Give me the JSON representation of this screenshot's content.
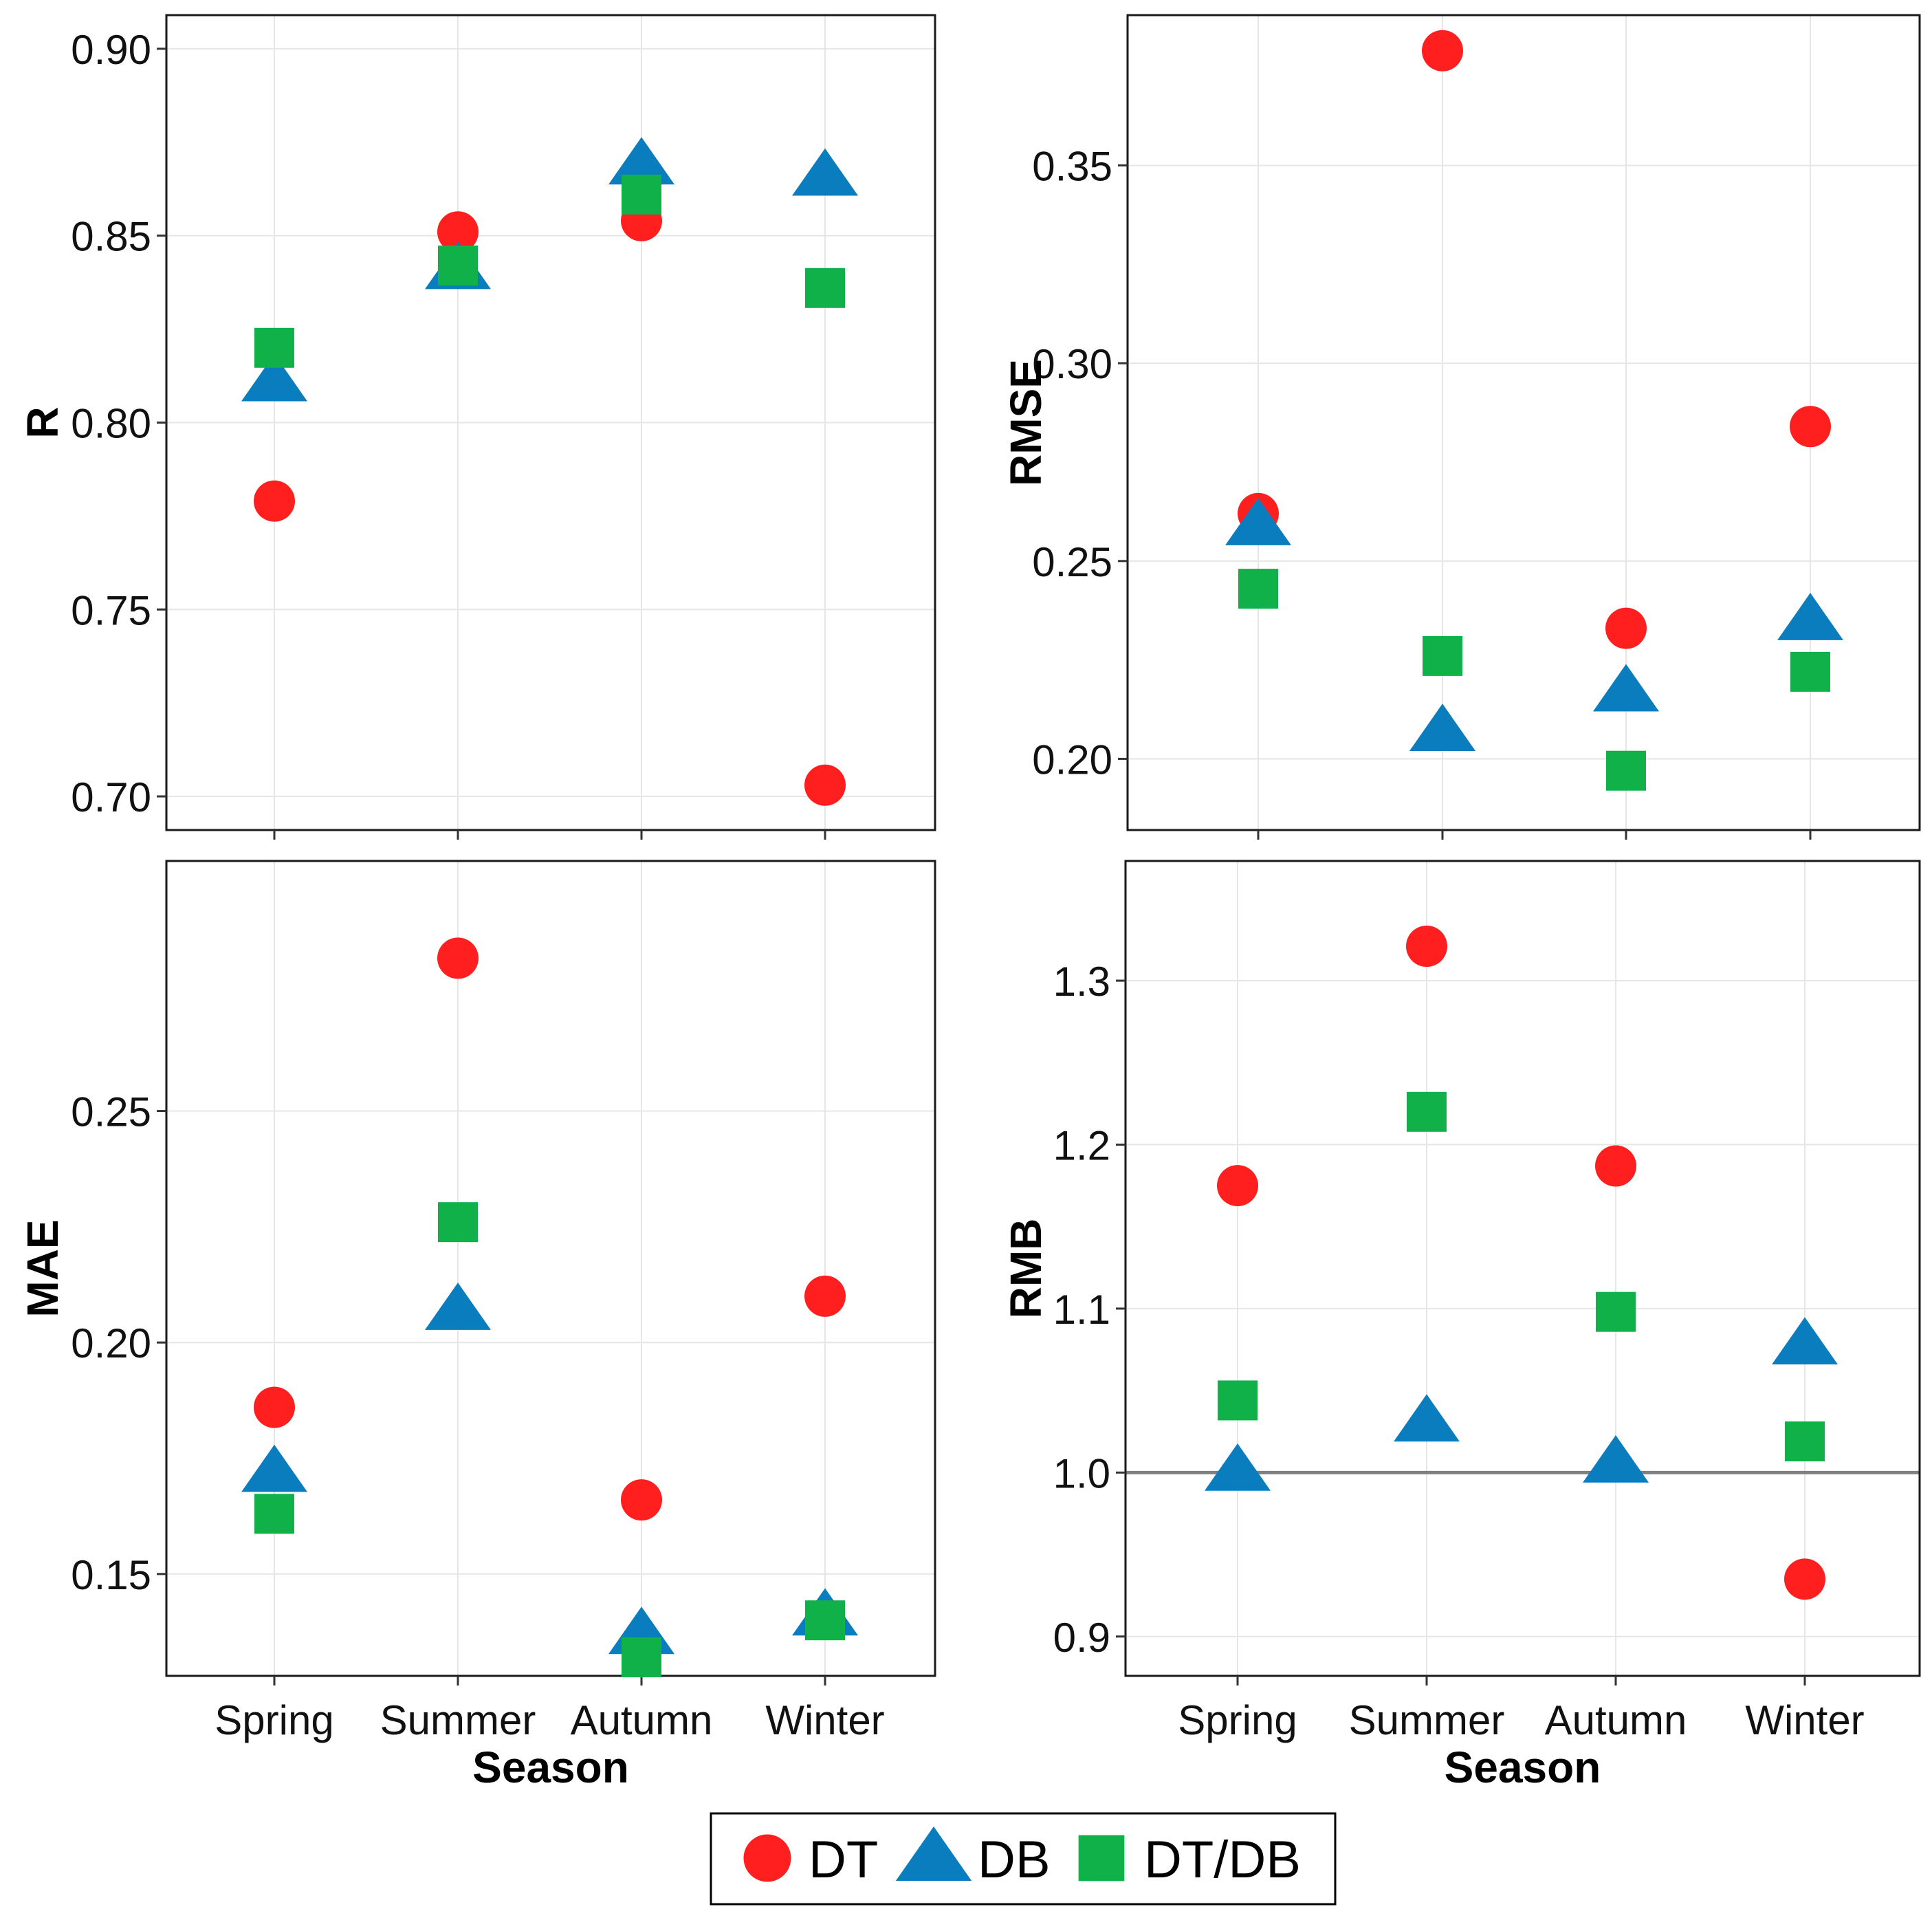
{
  "chart_data": [
    {
      "id": "R",
      "type": "scatter",
      "ylabel": "R",
      "xlabel": "",
      "categories": [
        "Spring",
        "Summer",
        "Autumn",
        "Winter"
      ],
      "ylim": [
        0.691,
        0.909
      ],
      "yticks": [
        0.7,
        0.75,
        0.8,
        0.85,
        0.9
      ],
      "ytick_labels": [
        "0.70",
        "0.75",
        "0.80",
        "0.85",
        "0.90"
      ],
      "grid": true,
      "show_x_tick_labels": false,
      "series": [
        {
          "name": "DT",
          "values": [
            0.779,
            0.851,
            0.854,
            0.703
          ]
        },
        {
          "name": "DB",
          "values": [
            0.811,
            0.841,
            0.869,
            0.866
          ]
        },
        {
          "name": "DT/DB",
          "values": [
            0.82,
            0.842,
            0.861,
            0.836
          ]
        }
      ]
    },
    {
      "id": "RMSE",
      "type": "scatter",
      "ylabel": "RMSE",
      "xlabel": "",
      "categories": [
        "Spring",
        "Summer",
        "Autumn",
        "Winter"
      ],
      "ylim": [
        0.182,
        0.388
      ],
      "yticks": [
        0.2,
        0.25,
        0.3,
        0.35
      ],
      "ytick_labels": [
        "0.20",
        "0.25",
        "0.30",
        "0.35"
      ],
      "grid": true,
      "show_x_tick_labels": false,
      "series": [
        {
          "name": "DT",
          "values": [
            0.262,
            0.379,
            0.233,
            0.284
          ]
        },
        {
          "name": "DB",
          "values": [
            0.259,
            0.207,
            0.217,
            0.235
          ]
        },
        {
          "name": "DT/DB",
          "values": [
            0.243,
            0.226,
            0.197,
            0.222
          ]
        }
      ]
    },
    {
      "id": "MAE",
      "type": "scatter",
      "ylabel": "MAE",
      "xlabel": "Season",
      "categories": [
        "Spring",
        "Summer",
        "Autumn",
        "Winter"
      ],
      "ylim": [
        0.128,
        0.304
      ],
      "yticks": [
        0.15,
        0.2,
        0.25
      ],
      "ytick_labels": [
        "0.15",
        "0.20",
        "0.25"
      ],
      "grid": true,
      "show_x_tick_labels": true,
      "series": [
        {
          "name": "DT",
          "values": [
            0.186,
            0.283,
            0.166,
            0.21
          ]
        },
        {
          "name": "DB",
          "values": [
            0.172,
            0.207,
            0.137,
            0.141
          ]
        },
        {
          "name": "DT/DB",
          "values": [
            0.163,
            0.226,
            0.132,
            0.14
          ]
        }
      ]
    },
    {
      "id": "RMB",
      "type": "scatter",
      "ylabel": "RMB",
      "xlabel": "Season",
      "categories": [
        "Spring",
        "Summer",
        "Autumn",
        "Winter"
      ],
      "ylim": [
        0.876,
        1.373
      ],
      "yticks": [
        0.9,
        1.0,
        1.1,
        1.2,
        1.3
      ],
      "ytick_labels": [
        "0.9",
        "1.0",
        "1.1",
        "1.2",
        "1.3"
      ],
      "grid": true,
      "show_x_tick_labels": true,
      "reference_line": 1.0,
      "series": [
        {
          "name": "DT",
          "values": [
            1.175,
            1.321,
            1.187,
            0.935
          ]
        },
        {
          "name": "DB",
          "values": [
            1.001,
            1.031,
            1.006,
            1.078
          ]
        },
        {
          "name": "DT/DB",
          "values": [
            1.044,
            1.22,
            1.098,
            1.019
          ]
        }
      ]
    }
  ],
  "legend": {
    "items": [
      {
        "name": "DT",
        "shape": "circle",
        "color": "#ff1f1f"
      },
      {
        "name": "DB",
        "shape": "triangle",
        "color": "#0a7dbe"
      },
      {
        "name": "DT/DB",
        "shape": "square",
        "color": "#10b148"
      }
    ]
  },
  "colors": {
    "DT": "#ff1f1f",
    "DB": "#0a7dbe",
    "DT/DB": "#10b148",
    "grid": "#e6e6e6",
    "reference_line": "#808080"
  }
}
